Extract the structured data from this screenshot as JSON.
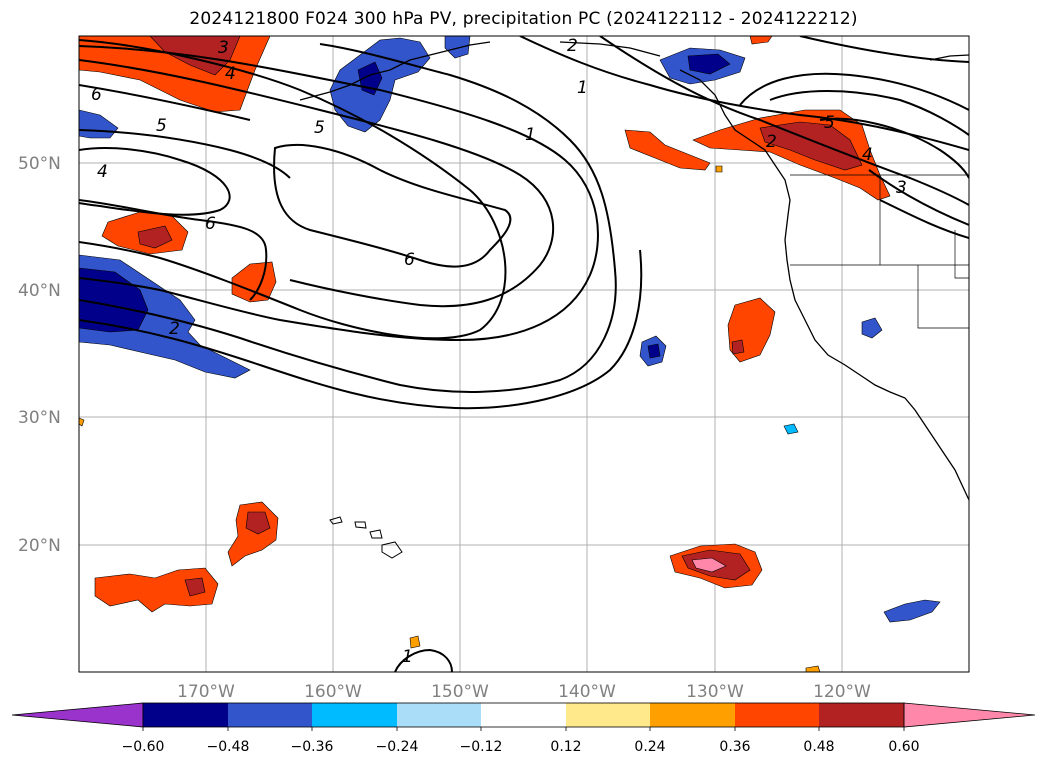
{
  "title": "2024121800 F024 300 hPa PV, precipitation PC (2024122112 - 2024122212)",
  "lat_labels": [
    "50°N",
    "40°N",
    "30°N",
    "20°N"
  ],
  "lon_labels": [
    "170°W",
    "160°W",
    "150°W",
    "140°W",
    "130°W",
    "120°W"
  ],
  "colorbar": {
    "tick_labels": [
      "−0.60",
      "−0.48",
      "−0.36",
      "−0.24",
      "−0.12",
      "0.12",
      "0.24",
      "0.36",
      "0.48",
      "0.60"
    ],
    "colors": [
      "#9933cc",
      "#00008b",
      "#3355cc",
      "#00bbff",
      "#aaddf7",
      "#ffffff",
      "#ffe98a",
      "#ffa000",
      "#ff4500",
      "#b22222",
      "#ff88aa"
    ]
  },
  "contour_labels": [
    "2",
    "1",
    "1",
    "6",
    "5",
    "4",
    "6",
    "6",
    "5",
    "4",
    "3",
    "2",
    "5",
    "3",
    "2",
    "4",
    "1"
  ]
}
